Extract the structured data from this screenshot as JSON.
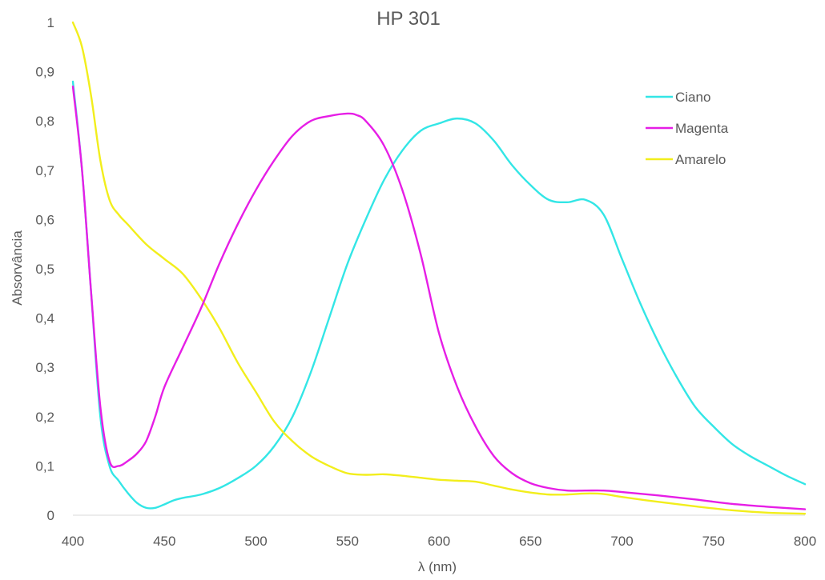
{
  "chart_data": {
    "type": "line",
    "title": "HP 301",
    "xlabel": "λ (nm)",
    "ylabel": "Absorvância",
    "xlim": [
      400,
      800
    ],
    "ylim": [
      0,
      1
    ],
    "x_ticks": [
      400,
      450,
      500,
      550,
      600,
      650,
      700,
      750,
      800
    ],
    "y_ticks": [
      "0",
      "0,1",
      "0,2",
      "0,3",
      "0,4",
      "0,5",
      "0,6",
      "0,7",
      "0,8",
      "0,9",
      "1"
    ],
    "grid": false,
    "legend_position": "top-right",
    "series": [
      {
        "name": "Ciano",
        "color": "#33E6E6",
        "points": [
          [
            400,
            0.88
          ],
          [
            405,
            0.7
          ],
          [
            410,
            0.45
          ],
          [
            415,
            0.2
          ],
          [
            420,
            0.1
          ],
          [
            425,
            0.07
          ],
          [
            430,
            0.045
          ],
          [
            435,
            0.025
          ],
          [
            440,
            0.015
          ],
          [
            445,
            0.015
          ],
          [
            450,
            0.022
          ],
          [
            455,
            0.03
          ],
          [
            460,
            0.035
          ],
          [
            470,
            0.042
          ],
          [
            480,
            0.055
          ],
          [
            490,
            0.075
          ],
          [
            500,
            0.1
          ],
          [
            510,
            0.14
          ],
          [
            520,
            0.2
          ],
          [
            530,
            0.29
          ],
          [
            540,
            0.4
          ],
          [
            550,
            0.51
          ],
          [
            560,
            0.6
          ],
          [
            570,
            0.68
          ],
          [
            580,
            0.74
          ],
          [
            590,
            0.78
          ],
          [
            600,
            0.795
          ],
          [
            610,
            0.805
          ],
          [
            620,
            0.795
          ],
          [
            630,
            0.76
          ],
          [
            640,
            0.71
          ],
          [
            650,
            0.67
          ],
          [
            660,
            0.64
          ],
          [
            670,
            0.635
          ],
          [
            680,
            0.64
          ],
          [
            690,
            0.61
          ],
          [
            700,
            0.52
          ],
          [
            710,
            0.43
          ],
          [
            720,
            0.35
          ],
          [
            730,
            0.28
          ],
          [
            740,
            0.22
          ],
          [
            750,
            0.18
          ],
          [
            760,
            0.145
          ],
          [
            770,
            0.12
          ],
          [
            780,
            0.1
          ],
          [
            790,
            0.08
          ],
          [
            800,
            0.063
          ]
        ]
      },
      {
        "name": "Magenta",
        "color": "#E61EE6",
        "points": [
          [
            400,
            0.87
          ],
          [
            405,
            0.7
          ],
          [
            410,
            0.45
          ],
          [
            415,
            0.22
          ],
          [
            420,
            0.11
          ],
          [
            425,
            0.1
          ],
          [
            430,
            0.11
          ],
          [
            435,
            0.125
          ],
          [
            440,
            0.15
          ],
          [
            445,
            0.2
          ],
          [
            450,
            0.26
          ],
          [
            460,
            0.34
          ],
          [
            470,
            0.42
          ],
          [
            480,
            0.51
          ],
          [
            490,
            0.59
          ],
          [
            500,
            0.66
          ],
          [
            510,
            0.72
          ],
          [
            520,
            0.77
          ],
          [
            530,
            0.8
          ],
          [
            540,
            0.81
          ],
          [
            550,
            0.815
          ],
          [
            555,
            0.812
          ],
          [
            560,
            0.8
          ],
          [
            570,
            0.75
          ],
          [
            580,
            0.66
          ],
          [
            590,
            0.53
          ],
          [
            600,
            0.37
          ],
          [
            610,
            0.26
          ],
          [
            620,
            0.18
          ],
          [
            630,
            0.12
          ],
          [
            640,
            0.085
          ],
          [
            650,
            0.065
          ],
          [
            660,
            0.055
          ],
          [
            670,
            0.05
          ],
          [
            680,
            0.05
          ],
          [
            690,
            0.05
          ],
          [
            700,
            0.047
          ],
          [
            720,
            0.04
          ],
          [
            740,
            0.032
          ],
          [
            760,
            0.023
          ],
          [
            780,
            0.017
          ],
          [
            800,
            0.012
          ]
        ]
      },
      {
        "name": "Amarelo",
        "color": "#F2EE1C",
        "points": [
          [
            400,
            1.0
          ],
          [
            405,
            0.95
          ],
          [
            410,
            0.85
          ],
          [
            415,
            0.72
          ],
          [
            420,
            0.64
          ],
          [
            425,
            0.61
          ],
          [
            430,
            0.59
          ],
          [
            440,
            0.55
          ],
          [
            450,
            0.52
          ],
          [
            460,
            0.49
          ],
          [
            470,
            0.44
          ],
          [
            480,
            0.38
          ],
          [
            490,
            0.31
          ],
          [
            500,
            0.25
          ],
          [
            510,
            0.19
          ],
          [
            520,
            0.15
          ],
          [
            530,
            0.12
          ],
          [
            540,
            0.1
          ],
          [
            550,
            0.085
          ],
          [
            560,
            0.082
          ],
          [
            570,
            0.083
          ],
          [
            580,
            0.08
          ],
          [
            590,
            0.076
          ],
          [
            600,
            0.072
          ],
          [
            610,
            0.07
          ],
          [
            620,
            0.068
          ],
          [
            630,
            0.06
          ],
          [
            640,
            0.052
          ],
          [
            650,
            0.046
          ],
          [
            660,
            0.042
          ],
          [
            670,
            0.042
          ],
          [
            680,
            0.044
          ],
          [
            690,
            0.043
          ],
          [
            700,
            0.037
          ],
          [
            720,
            0.027
          ],
          [
            740,
            0.018
          ],
          [
            760,
            0.01
          ],
          [
            780,
            0.005
          ],
          [
            800,
            0.003
          ]
        ]
      }
    ]
  }
}
